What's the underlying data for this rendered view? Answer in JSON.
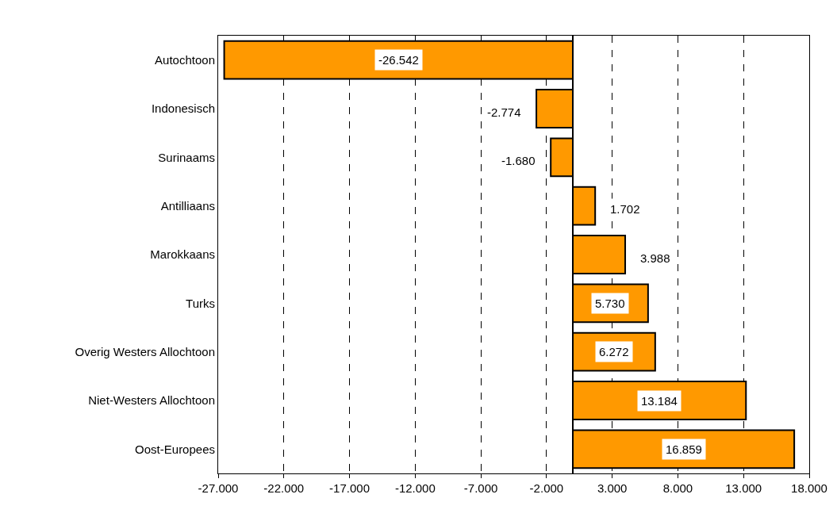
{
  "chart_data": {
    "type": "bar",
    "orientation": "horizontal",
    "categories": [
      "Autochtoon",
      "Indonesisch",
      "Surinaams",
      "Antilliaans",
      "Marokkaans",
      "Turks",
      "Overig Westers Allochtoon",
      "Niet-Westers Allochtoon",
      "Oost-Europees"
    ],
    "values": [
      -26542,
      -2774,
      -1680,
      1702,
      3988,
      5730,
      6272,
      13184,
      16859
    ],
    "value_labels": [
      "-26.542",
      "-2.774",
      "-1.680",
      "1.702",
      "3.988",
      "5.730",
      "6.272",
      "13.184",
      "16.859"
    ],
    "color": "#ff9900",
    "xlim": [
      -27000,
      18000
    ],
    "xticks": [
      {
        "value": -27000,
        "label": "-27.000"
      },
      {
        "value": -22000,
        "label": "-22.000"
      },
      {
        "value": -17000,
        "label": "-17.000"
      },
      {
        "value": -12000,
        "label": "-12.000"
      },
      {
        "value": -7000,
        "label": "-7.000"
      },
      {
        "value": -2000,
        "label": "-2.000"
      },
      {
        "value": 3000,
        "label": "3.000"
      },
      {
        "value": 8000,
        "label": "8.000"
      },
      {
        "value": 13000,
        "label": "13.000"
      },
      {
        "value": 18000,
        "label": "18.000"
      }
    ],
    "grid": "x"
  }
}
